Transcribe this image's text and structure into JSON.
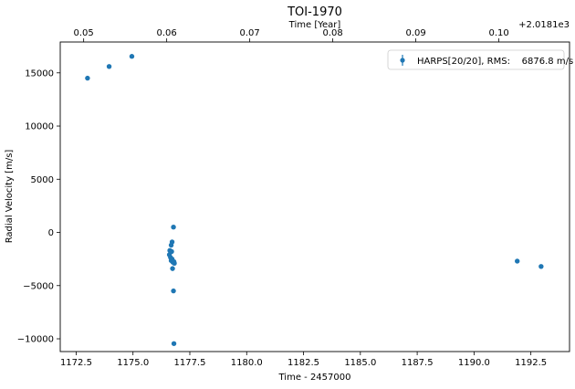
{
  "chart_data": {
    "type": "scatter",
    "title": "TOI-1970",
    "xlabel": "Time - 2457000",
    "ylabel": "Radial Velocity [m/s]",
    "xlim": [
      1171.8,
      1194.2
    ],
    "ylim": [
      -11200,
      17900
    ],
    "x_ticks": [
      "1172.5",
      "1175.0",
      "1177.5",
      "1180.0",
      "1182.5",
      "1185.0",
      "1187.5",
      "1190.0",
      "1192.5"
    ],
    "y_ticks": [
      "15000",
      "10000",
      "5000",
      "0",
      "−5000",
      "−10000"
    ],
    "top_axis": {
      "label": "Time [Year]",
      "offset_text": "+2.0181e3",
      "ticks": [
        "0.05",
        "0.06",
        "0.07",
        "0.08",
        "0.09",
        "0.10"
      ]
    },
    "series": [
      {
        "name": "HARPS[20/20], RMS:    6876.8 m/s",
        "color": "#1f77b4",
        "points": [
          [
            1173.0,
            14500
          ],
          [
            1173.95,
            15600
          ],
          [
            1174.95,
            16550
          ],
          [
            1176.78,
            500
          ],
          [
            1176.72,
            -900
          ],
          [
            1176.68,
            -1200
          ],
          [
            1176.62,
            -1700
          ],
          [
            1176.7,
            -1800
          ],
          [
            1176.6,
            -2100
          ],
          [
            1176.65,
            -2350
          ],
          [
            1176.72,
            -2500
          ],
          [
            1176.68,
            -2650
          ],
          [
            1176.8,
            -2750
          ],
          [
            1176.75,
            -2800
          ],
          [
            1176.82,
            -2900
          ],
          [
            1176.74,
            -3400
          ],
          [
            1176.78,
            -5500
          ],
          [
            1176.8,
            -10450
          ],
          [
            1191.9,
            -2700
          ],
          [
            1192.95,
            -3200
          ]
        ]
      }
    ],
    "legend": {
      "position": "top-right"
    }
  }
}
